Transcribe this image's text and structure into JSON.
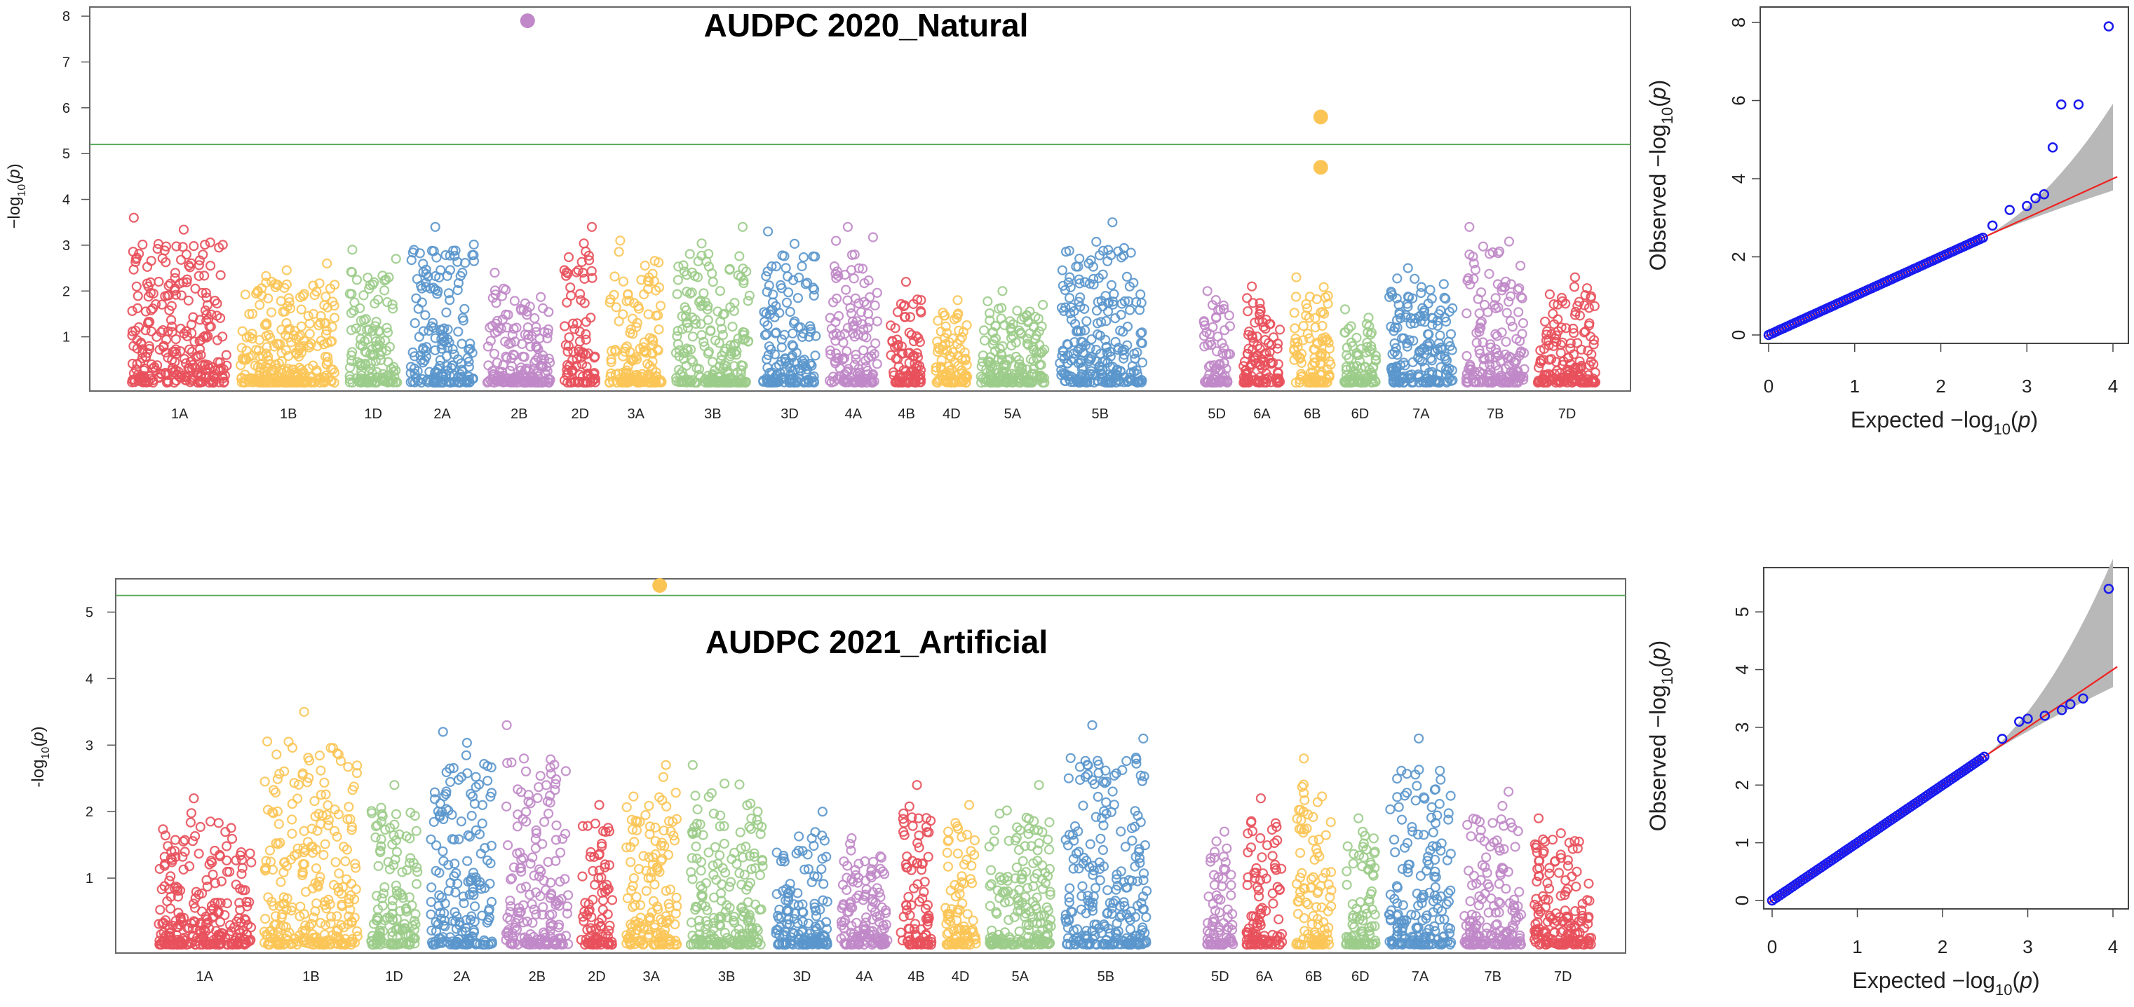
{
  "chart_data": [
    {
      "type": "scatter",
      "subtype": "manhattan",
      "title": "AUDPC 2020_Natural",
      "ylabel": "-log10(p)",
      "ylabel_parts": [
        "−log",
        "10",
        "(",
        "p",
        ")"
      ],
      "ylim": [
        0,
        8.2
      ],
      "yticks": [
        1,
        2,
        3,
        4,
        5,
        6,
        7,
        8
      ],
      "threshold": 5.2,
      "chromosomes": [
        "1A",
        "1B",
        "1D",
        "2A",
        "2B",
        "2D",
        "3A",
        "3B",
        "3D",
        "4A",
        "4B",
        "4D",
        "5A",
        "5B",
        "5D",
        "6A",
        "6B",
        "6D",
        "7A",
        "7B",
        "7D"
      ],
      "chromosome_colors": [
        "#e8505b",
        "#fbc556",
        "#9ccc8a",
        "#5a96cc",
        "#c088c8",
        "#e8505b",
        "#fbc556",
        "#9ccc8a",
        "#5a96cc",
        "#c088c8",
        "#e8505b",
        "#fbc556",
        "#9ccc8a",
        "#5a96cc",
        "#c088c8",
        "#e8505b",
        "#fbc556",
        "#9ccc8a",
        "#5a96cc",
        "#c088c8",
        "#e8505b"
      ],
      "chromosome_peaks": [
        3.6,
        2.6,
        2.9,
        3.4,
        2.4,
        3.4,
        3.1,
        3.4,
        3.3,
        3.4,
        2.2,
        1.8,
        2.0,
        3.5,
        2.0,
        2.1,
        2.3,
        1.6,
        2.5,
        3.4,
        2.3
      ],
      "significant_points": [
        {
          "chr": "2B",
          "value": 7.9
        },
        {
          "chr": "6B",
          "value": 5.8
        },
        {
          "chr": "6B",
          "value": 4.7
        }
      ]
    },
    {
      "type": "scatter",
      "subtype": "qq",
      "xlabel": "Expected -log10(p)",
      "ylabel": "Observed -log10(p)",
      "xlabel_parts": [
        "Expected  −log",
        "10",
        "(",
        "p",
        ")"
      ],
      "ylabel_parts": [
        "Observed  −log",
        "10",
        "(",
        "p",
        ")"
      ],
      "xlim": [
        0,
        4
      ],
      "ylim": [
        0,
        8
      ],
      "xticks": [
        0,
        1,
        2,
        3,
        4
      ],
      "yticks": [
        0,
        2,
        4,
        6,
        8
      ],
      "upper_tail": [
        [
          2.6,
          2.8
        ],
        [
          2.8,
          3.2
        ],
        [
          3.0,
          3.3
        ],
        [
          3.1,
          3.5
        ],
        [
          3.2,
          3.6
        ],
        [
          3.3,
          4.8
        ],
        [
          3.4,
          5.9
        ],
        [
          3.6,
          5.9
        ],
        [
          3.95,
          7.9
        ]
      ]
    },
    {
      "type": "scatter",
      "subtype": "manhattan",
      "title": "AUDPC 2021_Artificial",
      "ylabel": "-log10(p)",
      "ylabel_parts": [
        "-log",
        "10",
        "(",
        "p",
        ")"
      ],
      "ylim": [
        0,
        5.5
      ],
      "yticks": [
        1,
        2,
        3,
        4,
        5
      ],
      "threshold": 5.25,
      "chromosomes": [
        "1A",
        "1B",
        "1D",
        "2A",
        "2B",
        "2D",
        "3A",
        "3B",
        "3D",
        "4A",
        "4B",
        "4D",
        "5A",
        "5B",
        "5D",
        "6A",
        "6B",
        "6D",
        "7A",
        "7B",
        "7D"
      ],
      "chromosome_colors": [
        "#e8505b",
        "#fbc556",
        "#9ccc8a",
        "#5a96cc",
        "#c088c8",
        "#e8505b",
        "#fbc556",
        "#9ccc8a",
        "#5a96cc",
        "#c088c8",
        "#e8505b",
        "#fbc556",
        "#9ccc8a",
        "#5a96cc",
        "#c088c8",
        "#e8505b",
        "#fbc556",
        "#9ccc8a",
        "#5a96cc",
        "#c088c8",
        "#e8505b"
      ],
      "chromosome_peaks": [
        2.2,
        3.5,
        2.4,
        3.2,
        3.3,
        2.1,
        2.7,
        2.7,
        2.0,
        1.6,
        2.4,
        2.1,
        2.4,
        3.3,
        1.7,
        2.2,
        2.8,
        1.9,
        3.1,
        2.3,
        1.9
      ],
      "significant_points": [
        {
          "chr": "3A",
          "value": 5.4
        }
      ]
    },
    {
      "type": "scatter",
      "subtype": "qq",
      "xlabel": "Expected -log10(p)",
      "ylabel": "Observed -log10(p)",
      "xlabel_parts": [
        "Expected  −log",
        "10",
        "(",
        "p",
        ")"
      ],
      "ylabel_parts": [
        "Observed  −log",
        "10",
        "(",
        "p",
        ")"
      ],
      "xlim": [
        0,
        4
      ],
      "ylim": [
        0,
        5.5
      ],
      "xticks": [
        0,
        1,
        2,
        3,
        4
      ],
      "yticks": [
        0,
        1,
        2,
        3,
        4,
        5
      ],
      "upper_tail": [
        [
          2.7,
          2.8
        ],
        [
          2.9,
          3.1
        ],
        [
          3.0,
          3.15
        ],
        [
          3.2,
          3.2
        ],
        [
          3.4,
          3.3
        ],
        [
          3.5,
          3.4
        ],
        [
          3.65,
          3.5
        ],
        [
          3.95,
          5.4
        ]
      ]
    }
  ],
  "colors": {
    "threshold_line": "#5aaa5a",
    "qq_points": "#1a1aee",
    "qq_line": "#ee2222",
    "qq_band": "#b8b8b8"
  }
}
